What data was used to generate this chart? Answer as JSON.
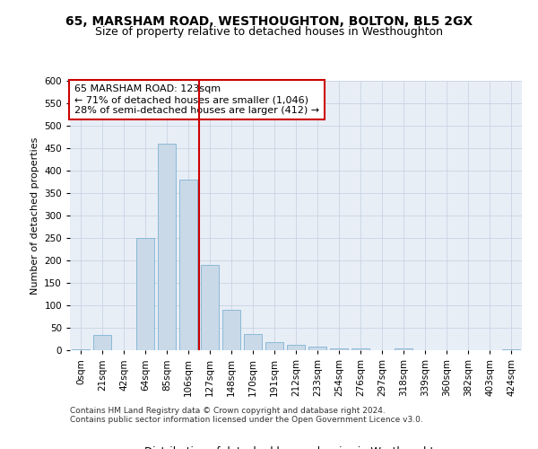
{
  "title1": "65, MARSHAM ROAD, WESTHOUGHTON, BOLTON, BL5 2GX",
  "title2": "Size of property relative to detached houses in Westhoughton",
  "xlabel": "Distribution of detached houses by size in Westhoughton",
  "ylabel": "Number of detached properties",
  "categories": [
    "0sqm",
    "21sqm",
    "42sqm",
    "64sqm",
    "85sqm",
    "106sqm",
    "127sqm",
    "148sqm",
    "170sqm",
    "191sqm",
    "212sqm",
    "233sqm",
    "254sqm",
    "276sqm",
    "297sqm",
    "318sqm",
    "339sqm",
    "360sqm",
    "382sqm",
    "403sqm",
    "424sqm"
  ],
  "values": [
    2,
    35,
    0,
    250,
    460,
    380,
    190,
    90,
    37,
    18,
    12,
    8,
    5,
    5,
    0,
    5,
    0,
    0,
    0,
    0,
    2
  ],
  "bar_color": "#c9d9e8",
  "bar_edge_color": "#7fb3d3",
  "vline_color": "#cc0000",
  "annotation_text": "65 MARSHAM ROAD: 123sqm\n← 71% of detached houses are smaller (1,046)\n28% of semi-detached houses are larger (412) →",
  "annotation_box_color": "#ffffff",
  "annotation_box_edge": "#cc0000",
  "ylim": [
    0,
    600
  ],
  "yticks": [
    0,
    50,
    100,
    150,
    200,
    250,
    300,
    350,
    400,
    450,
    500,
    550,
    600
  ],
  "grid_color": "#c8d4e4",
  "background_color": "#e8eef6",
  "footnote1": "Contains HM Land Registry data © Crown copyright and database right 2024.",
  "footnote2": "Contains public sector information licensed under the Open Government Licence v3.0.",
  "title1_fontsize": 10,
  "title2_fontsize": 9,
  "xlabel_fontsize": 8.5,
  "ylabel_fontsize": 8,
  "tick_fontsize": 7.5,
  "annotation_fontsize": 8,
  "footnote_fontsize": 6.5
}
